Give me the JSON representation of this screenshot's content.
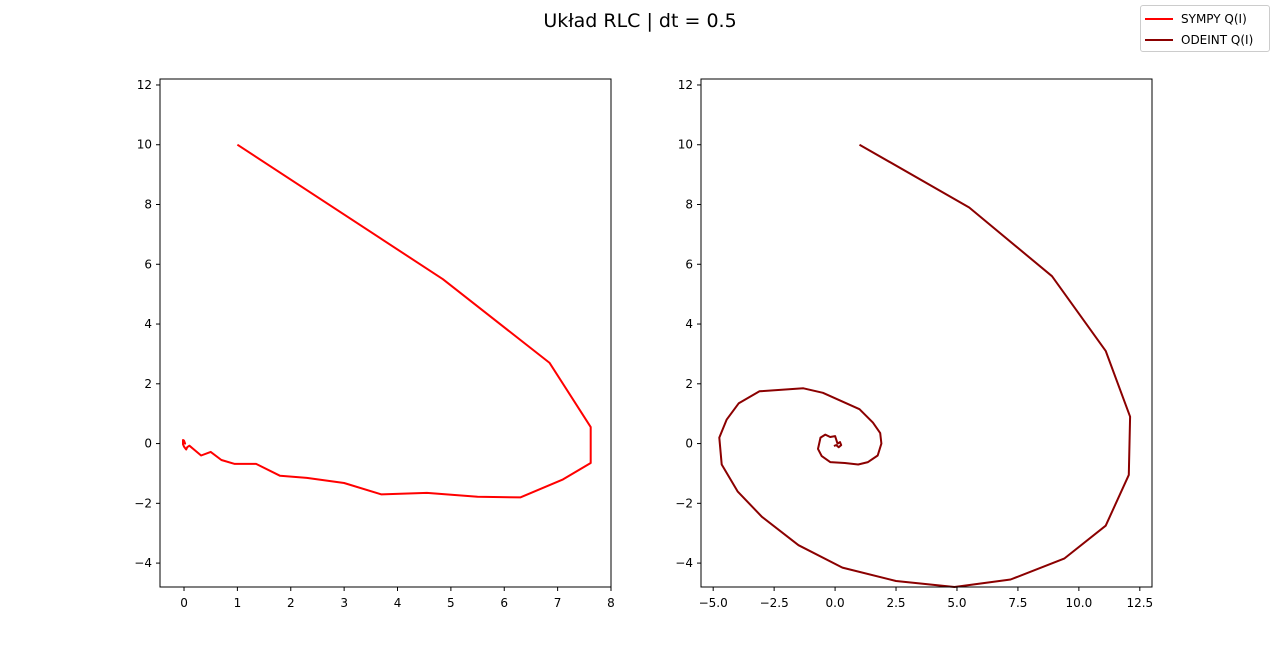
{
  "title": "Układ RLC | dt = 0.5",
  "legend": [
    {
      "label": "SYMPY Q(I)",
      "color": "#ff0000"
    },
    {
      "label": "ODEINT Q(I)",
      "color": "#8b0000"
    }
  ],
  "chart_data": [
    {
      "type": "line",
      "xlim": [
        -0.45,
        8.0
      ],
      "ylim": [
        -4.8,
        12.2
      ],
      "xticks": [
        0,
        1,
        2,
        3,
        4,
        5,
        6,
        7,
        8
      ],
      "yticks": [
        -4,
        -2,
        0,
        2,
        4,
        6,
        8,
        10,
        12
      ],
      "series": [
        {
          "color": "#ff0000",
          "x": [
            1.0,
            4.85,
            6.85,
            7.62,
            7.62,
            7.1,
            6.3,
            5.5,
            4.55,
            3.7,
            3.0,
            2.3,
            1.8,
            1.35,
            0.95,
            0.7,
            0.5,
            0.32,
            0.2,
            0.1,
            0.06,
            0.04,
            0.0,
            -0.02,
            -0.02,
            0.0,
            0.02,
            -0.02,
            -0.01
          ],
          "y": [
            10.0,
            5.5,
            2.7,
            0.55,
            -0.65,
            -1.2,
            -1.8,
            -1.78,
            -1.65,
            -1.7,
            -1.32,
            -1.15,
            -1.08,
            -0.68,
            -0.68,
            -0.55,
            -0.28,
            -0.4,
            -0.22,
            -0.07,
            -0.12,
            -0.2,
            -0.1,
            -0.02,
            0.12,
            0.1,
            0.0,
            0.05,
            0.08
          ]
        }
      ]
    },
    {
      "type": "line",
      "xlim": [
        -5.5,
        13.0
      ],
      "ylim": [
        -4.8,
        12.2
      ],
      "xticks": [
        -5.0,
        -2.5,
        0.0,
        2.5,
        5.0,
        7.5,
        10.0,
        12.5
      ],
      "yticks": [
        -4,
        -2,
        0,
        2,
        4,
        6,
        8,
        10,
        12
      ],
      "series": [
        {
          "color": "#8b0000",
          "x": [
            1.0,
            5.5,
            8.9,
            11.1,
            12.1,
            12.05,
            11.1,
            9.4,
            7.2,
            4.9,
            2.5,
            0.3,
            -1.5,
            -3.0,
            -4.0,
            -4.65,
            -4.75,
            -4.45,
            -3.95,
            -3.1,
            -1.3,
            -0.5,
            1.0,
            1.55,
            1.85,
            1.9,
            1.75,
            1.35,
            0.95,
            0.4,
            -0.2,
            -0.55,
            -0.7,
            -0.6,
            -0.4,
            -0.2,
            0.0,
            0.1,
            0.2,
            0.25,
            0.15,
            0.05,
            -0.05
          ],
          "y": [
            10.0,
            7.9,
            5.6,
            3.1,
            0.9,
            -1.05,
            -2.75,
            -3.85,
            -4.55,
            -4.8,
            -4.6,
            -4.15,
            -3.4,
            -2.45,
            -1.6,
            -0.7,
            0.2,
            0.8,
            1.35,
            1.75,
            1.85,
            1.7,
            1.15,
            0.7,
            0.35,
            0.0,
            -0.4,
            -0.62,
            -0.7,
            -0.65,
            -0.62,
            -0.42,
            -0.18,
            0.2,
            0.3,
            0.22,
            0.25,
            0.0,
            0.05,
            -0.05,
            -0.12,
            -0.05,
            -0.08
          ]
        }
      ]
    }
  ]
}
